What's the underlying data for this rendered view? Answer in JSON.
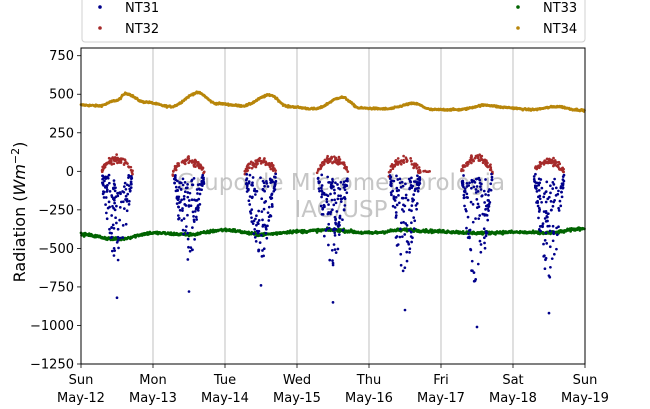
{
  "chart_data": {
    "type": "scatter",
    "title": "",
    "xlabel": "",
    "ylabel": {
      "prefix": "Radiation (",
      "unit_base": "Wm",
      "unit_exp": "−2",
      "suffix": ")"
    },
    "ylim": [
      -1250,
      800
    ],
    "yticks": [
      -1250,
      -1000,
      -750,
      -500,
      -250,
      0,
      250,
      500,
      750
    ],
    "ytick_labels": [
      "−1250",
      "−1000",
      "−750",
      "−500",
      "−250",
      "0",
      "250",
      "500",
      "750"
    ],
    "xlim": [
      "2019-05-12",
      "2019-05-19"
    ],
    "xticks": [
      "2019-05-12",
      "2019-05-13",
      "2019-05-14",
      "2019-05-15",
      "2019-05-16",
      "2019-05-17",
      "2019-05-18",
      "2019-05-19"
    ],
    "xtick_labels": [
      [
        "Sun",
        "May-12"
      ],
      [
        "Mon",
        "May-13"
      ],
      [
        "Tue",
        "May-14"
      ],
      [
        "Wed",
        "May-15"
      ],
      [
        "Thu",
        "May-16"
      ],
      [
        "Fri",
        "May-17"
      ],
      [
        "Sat",
        "May-18"
      ],
      [
        "Sun",
        "May-19"
      ]
    ],
    "grid": "vertical",
    "legend": "top, two columns",
    "watermark": [
      "Grupo de Micrometeorologia",
      "IAG/USP"
    ],
    "series": [
      {
        "name": "NT31",
        "color": "#00008b",
        "daily_min": [
          -820,
          -780,
          -740,
          -850,
          -900,
          -1010,
          -920
        ]
      },
      {
        "name": "NT32",
        "color": "#a52a2a",
        "daily_max": [
          100,
          95,
          90,
          105,
          95,
          110,
          90
        ]
      },
      {
        "name": "NT33",
        "color": "#006400",
        "points": [
          [
            "2019-05-12T00:00",
            -410
          ],
          [
            "2019-05-12T12:00",
            -440
          ],
          [
            "2019-05-13T00:00",
            -400
          ],
          [
            "2019-05-13T12:00",
            -410
          ],
          [
            "2019-05-14T00:00",
            -380
          ],
          [
            "2019-05-14T12:00",
            -410
          ],
          [
            "2019-05-15T00:00",
            -390
          ],
          [
            "2019-05-15T12:00",
            -380
          ],
          [
            "2019-05-16T00:00",
            -400
          ],
          [
            "2019-05-16T12:00",
            -380
          ],
          [
            "2019-05-17T00:00",
            -390
          ],
          [
            "2019-05-17T12:00",
            -400
          ],
          [
            "2019-05-18T00:00",
            -395
          ],
          [
            "2019-05-18T12:00",
            -400
          ],
          [
            "2019-05-19T00:00",
            -370
          ]
        ]
      },
      {
        "name": "NT34",
        "color": "#b8860b",
        "points": [
          [
            "2019-05-12T00:00",
            430
          ],
          [
            "2019-05-12T06:00",
            425
          ],
          [
            "2019-05-12T12:00",
            460
          ],
          [
            "2019-05-12T15:00",
            505
          ],
          [
            "2019-05-12T21:00",
            450
          ],
          [
            "2019-05-13T06:00",
            420
          ],
          [
            "2019-05-13T15:00",
            510
          ],
          [
            "2019-05-13T21:00",
            440
          ],
          [
            "2019-05-14T06:00",
            425
          ],
          [
            "2019-05-14T15:00",
            495
          ],
          [
            "2019-05-14T21:00",
            420
          ],
          [
            "2019-05-15T06:00",
            405
          ],
          [
            "2019-05-15T15:00",
            480
          ],
          [
            "2019-05-15T21:00",
            410
          ],
          [
            "2019-05-16T06:00",
            405
          ],
          [
            "2019-05-16T15:00",
            440
          ],
          [
            "2019-05-16T21:00",
            400
          ],
          [
            "2019-05-17T06:00",
            400
          ],
          [
            "2019-05-17T15:00",
            430
          ],
          [
            "2019-05-17T21:00",
            415
          ],
          [
            "2019-05-18T06:00",
            400
          ],
          [
            "2019-05-18T15:00",
            420
          ],
          [
            "2019-05-18T21:00",
            400
          ],
          [
            "2019-05-19T00:00",
            395
          ]
        ]
      }
    ]
  }
}
